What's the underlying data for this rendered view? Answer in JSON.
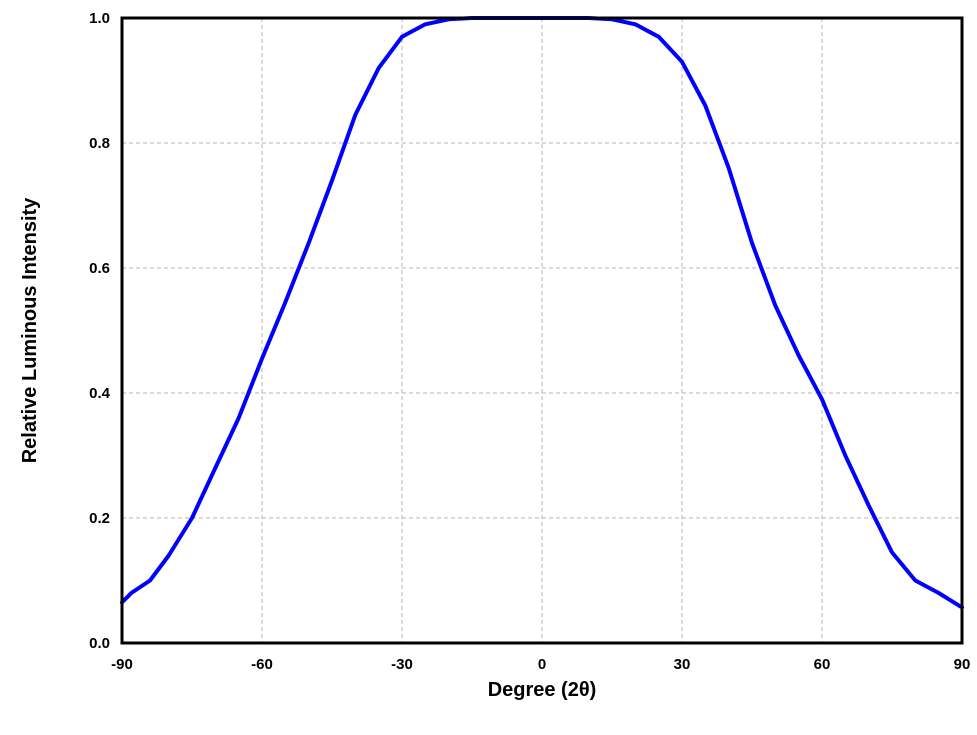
{
  "chart_data": {
    "type": "line",
    "title": "",
    "xlabel": "Degree (2θ)",
    "ylabel": "Relative Luminous Intensity",
    "xlim": [
      -90,
      90
    ],
    "ylim": [
      0.0,
      1.0
    ],
    "grid": true,
    "x_ticks": [
      -90,
      -60,
      -30,
      0,
      30,
      60,
      90
    ],
    "x_tick_labels": [
      "-90",
      "-60",
      "-30",
      "0",
      "30",
      "60",
      "90"
    ],
    "y_ticks": [
      0.0,
      0.2,
      0.4,
      0.6,
      0.8,
      1.0
    ],
    "y_tick_labels": [
      "0.0",
      "0.2",
      "0.4",
      "0.6",
      "0.8",
      "1.0"
    ],
    "line_color": "#0000ff",
    "series": [
      {
        "x": [
          -90,
          -88,
          -84,
          -80,
          -75,
          -70,
          -65,
          -60,
          -55,
          -50,
          -45,
          -40,
          -35,
          -30,
          -25,
          -20,
          -15,
          -10,
          -5,
          0,
          5,
          10,
          15,
          20,
          25,
          30,
          35,
          40,
          45,
          50,
          55,
          60,
          65,
          70,
          75,
          80,
          85,
          90
        ],
        "values": [
          0.065,
          0.08,
          0.1,
          0.14,
          0.2,
          0.28,
          0.36,
          0.455,
          0.545,
          0.64,
          0.74,
          0.845,
          0.92,
          0.97,
          0.99,
          0.998,
          1.0,
          1.0,
          1.0,
          1.0,
          1.0,
          1.0,
          0.998,
          0.99,
          0.97,
          0.93,
          0.86,
          0.76,
          0.64,
          0.54,
          0.46,
          0.39,
          0.3,
          0.22,
          0.145,
          0.1,
          0.08,
          0.057
        ]
      }
    ]
  }
}
